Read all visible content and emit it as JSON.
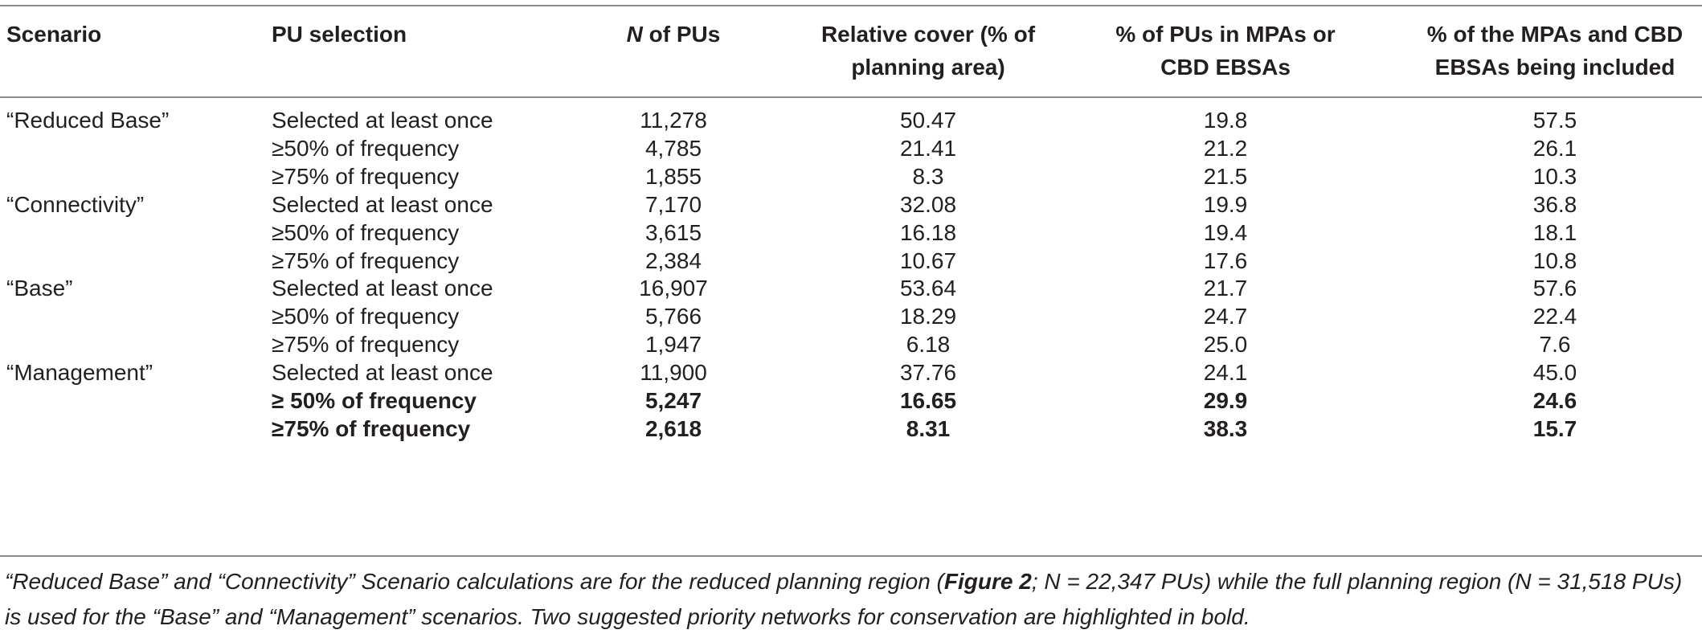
{
  "table": {
    "headers": {
      "scenario": "Scenario",
      "pu_selection": "PU selection",
      "n_of_pus_prefix": "N",
      "n_of_pus_suffix": " of PUs",
      "relative_cover": "Relative cover (% of planning area)",
      "pct_pus_in_mpas": "% of PUs in MPAs or CBD EBSAs",
      "pct_mpas_included": "% of the MPAs and CBD EBSAs being included"
    },
    "rows": [
      {
        "scenario": "“Reduced Base”",
        "selection": "Selected at least once",
        "n": "11,278",
        "cover": "50.47",
        "in_mpas": "19.8",
        "included": "57.5",
        "bold": false
      },
      {
        "scenario": "",
        "selection": "≥50% of frequency",
        "n": "4,785",
        "cover": "21.41",
        "in_mpas": "21.2",
        "included": "26.1",
        "bold": false
      },
      {
        "scenario": "",
        "selection": "≥75% of frequency",
        "n": "1,855",
        "cover": "8.3",
        "in_mpas": "21.5",
        "included": "10.3",
        "bold": false
      },
      {
        "scenario": "“Connectivity”",
        "selection": "Selected at least once",
        "n": "7,170",
        "cover": "32.08",
        "in_mpas": "19.9",
        "included": "36.8",
        "bold": false
      },
      {
        "scenario": "",
        "selection": "≥50% of frequency",
        "n": "3,615",
        "cover": "16.18",
        "in_mpas": "19.4",
        "included": "18.1",
        "bold": false
      },
      {
        "scenario": "",
        "selection": "≥75% of frequency",
        "n": "2,384",
        "cover": "10.67",
        "in_mpas": "17.6",
        "included": "10.8",
        "bold": false
      },
      {
        "scenario": "“Base”",
        "selection": "Selected at least once",
        "n": "16,907",
        "cover": "53.64",
        "in_mpas": "21.7",
        "included": "57.6",
        "bold": false
      },
      {
        "scenario": "",
        "selection": "≥50% of frequency",
        "n": "5,766",
        "cover": "18.29",
        "in_mpas": "24.7",
        "included": "22.4",
        "bold": false
      },
      {
        "scenario": "",
        "selection": "≥75% of frequency",
        "n": "1,947",
        "cover": "6.18",
        "in_mpas": "25.0",
        "included": "7.6",
        "bold": false
      },
      {
        "scenario": "“Management”",
        "selection": "Selected at least once",
        "n": "11,900",
        "cover": "37.76",
        "in_mpas": "24.1",
        "included": "45.0",
        "bold": false
      },
      {
        "scenario": "",
        "selection": "≥ 50% of frequency",
        "n": "5,247",
        "cover": "16.65",
        "in_mpas": "29.9",
        "included": "24.6",
        "bold": true
      },
      {
        "scenario": "",
        "selection": "≥75% of frequency",
        "n": "2,618",
        "cover": "8.31",
        "in_mpas": "38.3",
        "included": "15.7",
        "bold": true
      }
    ]
  },
  "footnote": {
    "part1": "“Reduced Base” and “Connectivity” Scenario calculations are for the reduced planning region (",
    "figure_ref": "Figure 2",
    "part2": "; N = 22,347 PUs) while the full planning region (N = 31,518 PUs) is used for the “Base” and “Management” scenarios. Two suggested priority networks for conservation are highlighted in bold."
  }
}
